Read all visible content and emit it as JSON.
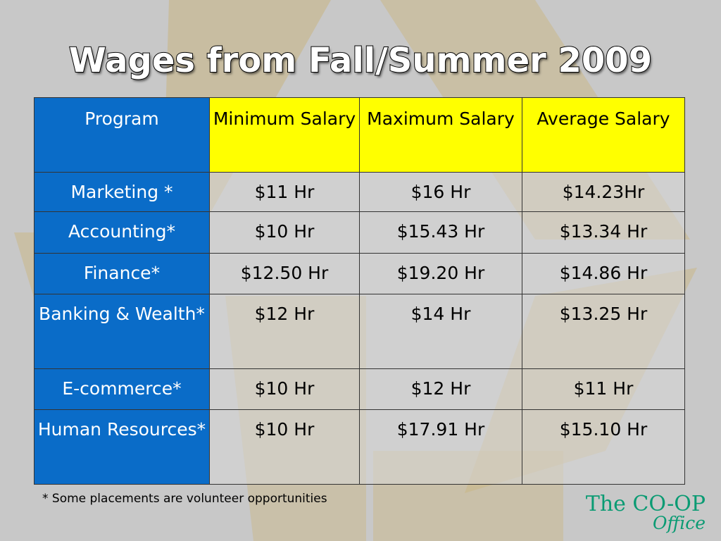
{
  "slide": {
    "title": "Wages from Fall/Summer 2009",
    "footnote": "* Some placements are volunteer opportunities",
    "logo": {
      "line1": "The CO-OP",
      "line2": "Office",
      "color": "#0a9b73"
    }
  },
  "table": {
    "headers": {
      "program": "Program",
      "minimum": "Minimum Salary",
      "maximum": "Maximum Salary",
      "average": "Average Salary"
    },
    "rows": [
      {
        "program": "Marketing *",
        "minimum": "$11 Hr",
        "maximum": "$16 Hr",
        "average": "$14.23Hr"
      },
      {
        "program": "Accounting*",
        "minimum": "$10 Hr",
        "maximum": "$15.43 Hr",
        "average": "$13.34 Hr"
      },
      {
        "program": "Finance*",
        "minimum": "$12.50 Hr",
        "maximum": "$19.20 Hr",
        "average": "$14.86 Hr"
      },
      {
        "program": "Banking & Wealth*",
        "minimum": "$12 Hr",
        "maximum": "$14 Hr",
        "average": "$13.25 Hr"
      },
      {
        "program": "E-commerce*",
        "minimum": "$10 Hr",
        "maximum": "$12 Hr",
        "average": "$11 Hr"
      },
      {
        "program": "Human Resources*",
        "minimum": "$10 Hr",
        "maximum": "$17.91 Hr",
        "average": "$15.10 Hr"
      }
    ]
  },
  "colors": {
    "program_column": "#0a6cc8",
    "header_row": "#ffff00",
    "background": "#c8c8c8",
    "decoration": "#c9b582"
  }
}
